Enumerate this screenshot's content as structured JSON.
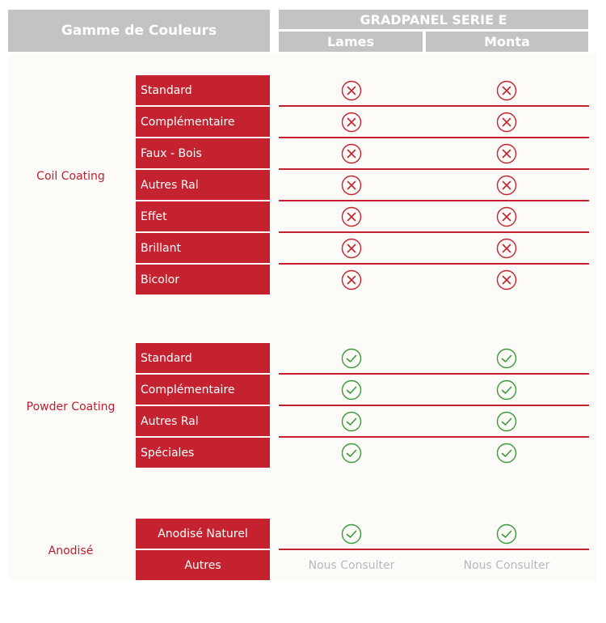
{
  "header": {
    "title": "Gamme de Couleurs",
    "product": "GRADPANEL SERIE E",
    "col1": "Lames",
    "col2": "Monta"
  },
  "colors": {
    "header_bg": "#c3c3c3",
    "label_red": "#c4222f",
    "category_text": "#bd1e2f",
    "cross_red": "#c4222f",
    "check_green": "#3a9a3a",
    "consult_gray": "#b8b8b8"
  },
  "groups": [
    {
      "name": "Coil Coating",
      "rows": [
        {
          "label": "Standard",
          "lames": "cross-icon",
          "monta": "cross-icon"
        },
        {
          "label": "Complémentaire",
          "lames": "cross-icon",
          "monta": "cross-icon"
        },
        {
          "label": "Faux - Bois",
          "lames": "cross-icon",
          "monta": "cross-icon"
        },
        {
          "label": "Autres Ral",
          "lames": "cross-icon",
          "monta": "cross-icon"
        },
        {
          "label": "Effet",
          "lames": "cross-icon",
          "monta": "cross-icon"
        },
        {
          "label": "Brillant",
          "lames": "cross-icon",
          "monta": "cross-icon"
        },
        {
          "label": "Bicolor",
          "lames": "cross-icon",
          "monta": "cross-icon"
        }
      ]
    },
    {
      "name": "Powder Coating",
      "rows": [
        {
          "label": "Standard",
          "lames": "check-icon",
          "monta": "check-icon"
        },
        {
          "label": "Complémentaire",
          "lames": "check-icon",
          "monta": "check-icon"
        },
        {
          "label": "Autres Ral",
          "lames": "check-icon",
          "monta": "check-icon"
        },
        {
          "label": "Spéciales",
          "lames": "check-icon",
          "monta": "check-icon"
        }
      ]
    },
    {
      "name": "Anodisé",
      "rows": [
        {
          "label": "Anodisé Naturel",
          "lames": "check-icon",
          "monta": "check-icon"
        },
        {
          "label": "Autres",
          "lames": "Nous Consulter",
          "monta": "Nous Consulter"
        }
      ]
    }
  ]
}
